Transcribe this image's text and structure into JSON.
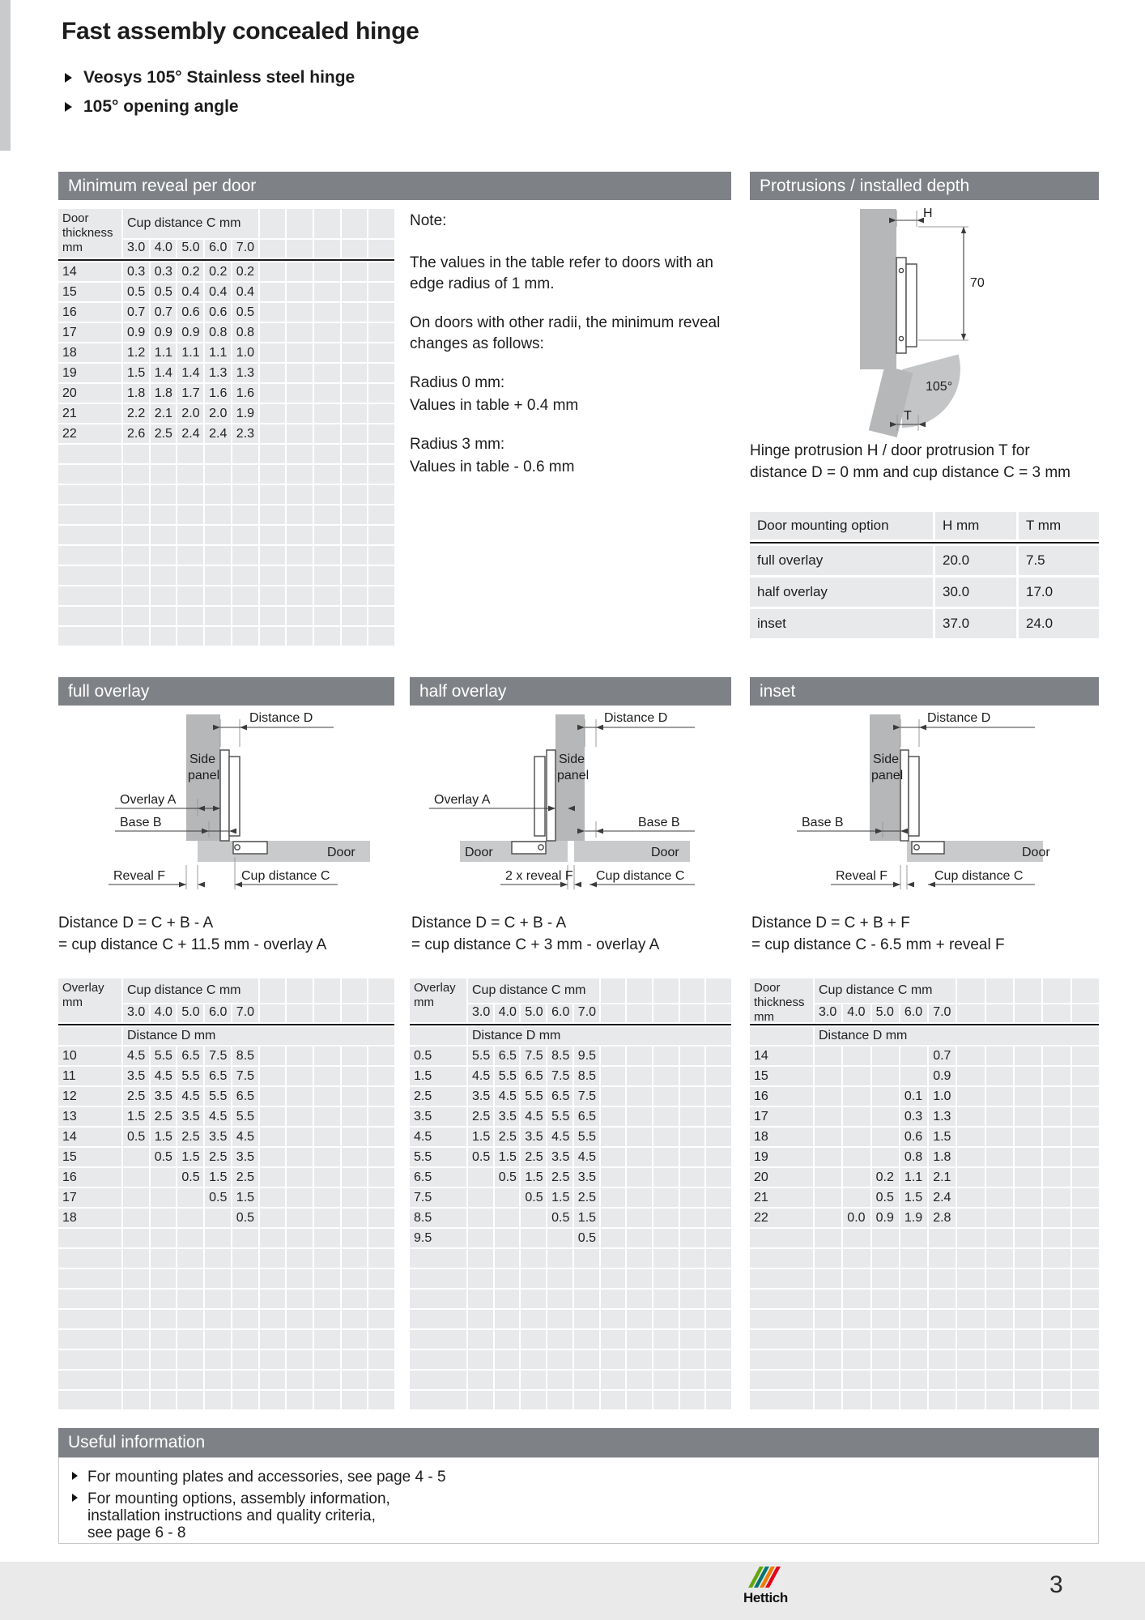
{
  "page": {
    "title": "Fast assembly concealed hinge",
    "subtitle_bullets": [
      "Veosys 105° Stainless steel hinge",
      "105° opening angle"
    ]
  },
  "sections": {
    "min_reveal": {
      "title": "Minimum reveal per door"
    },
    "protrusions": {
      "title": "Protrusions / installed depth"
    },
    "full_overlay": {
      "title": "full overlay"
    },
    "half_overlay": {
      "title": "half overlay"
    },
    "inset": {
      "title": "inset"
    },
    "useful": {
      "title": "Useful information"
    }
  },
  "note": {
    "heading": "Note:",
    "p1": "The values in the table refer to doors with an\nedge radius of 1 mm.",
    "p2": "On doors with other radii, the minimum reveal\nchanges as follows:",
    "r0_label": "Radius 0 mm:",
    "r0_value": "Values in table + 0.4 mm",
    "r3_label": "Radius 3 mm:",
    "r3_value": "Values in table - 0.6 mm"
  },
  "protrusions": {
    "caption": "Hinge protrusion H / door protrusion T for\ndistance D = 0 mm and cup distance C = 3 mm",
    "table": {
      "headers": [
        "Door mounting option",
        "H mm",
        "T mm"
      ],
      "rows": [
        {
          "option": "full overlay",
          "h": "20.0",
          "t": "7.5"
        },
        {
          "option": "half overlay",
          "h": "30.0",
          "t": "17.0"
        },
        {
          "option": "inset",
          "h": "37.0",
          "t": "24.0"
        }
      ]
    }
  },
  "diagrams": {
    "protrusion": {
      "labels": {
        "h": "H",
        "depth": "70",
        "angle": "105°",
        "t": "T"
      }
    },
    "full_overlay": {
      "labels": {
        "distance_d": "Distance D",
        "side_l1": "Side",
        "side_l2": "panel",
        "overlay_a": "Overlay A",
        "base_b": "Base B",
        "door": "Door",
        "reveal_f": "Reveal F",
        "cup_c": "Cup distance C"
      }
    },
    "half_overlay": {
      "labels": {
        "distance_d": "Distance D",
        "side_l1": "Side",
        "side_l2": "panel",
        "overlay_a": "Overlay A",
        "base_b": "Base B",
        "door_left": "Door",
        "door_right": "Door",
        "reveal": "2 x reveal F",
        "cup_c": "Cup distance C"
      }
    },
    "inset": {
      "labels": {
        "distance_d": "Distance D",
        "side_l1": "Side",
        "side_l2": "panel",
        "base_b": "Base B",
        "door": "Door",
        "reveal_f": "Reveal F",
        "cup_c": "Cup distance C"
      }
    }
  },
  "formulas": {
    "full_overlay": [
      "Distance D = C + B - A",
      "= cup distance C + 11.5 mm - overlay A"
    ],
    "half_overlay": [
      "Distance D = C + B - A",
      "= cup distance C + 3 mm - overlay A"
    ],
    "inset": [
      "Distance D = C + B + F",
      "= cup distance C - 6.5 mm + reveal F"
    ]
  },
  "tables": {
    "min_reveal": {
      "label_header": "Door\nthickness\nmm",
      "span_header": "Cup distance C mm",
      "col_headers": [
        "3.0",
        "4.0",
        "5.0",
        "6.0",
        "7.0"
      ],
      "extra_cols": 5,
      "rows": [
        {
          "label": "14",
          "values": [
            "0.3",
            "0.3",
            "0.2",
            "0.2",
            "0.2"
          ]
        },
        {
          "label": "15",
          "values": [
            "0.5",
            "0.5",
            "0.4",
            "0.4",
            "0.4"
          ]
        },
        {
          "label": "16",
          "values": [
            "0.7",
            "0.7",
            "0.6",
            "0.6",
            "0.5"
          ]
        },
        {
          "label": "17",
          "values": [
            "0.9",
            "0.9",
            "0.9",
            "0.8",
            "0.8"
          ]
        },
        {
          "label": "18",
          "values": [
            "1.2",
            "1.1",
            "1.1",
            "1.1",
            "1.0"
          ]
        },
        {
          "label": "19",
          "values": [
            "1.5",
            "1.4",
            "1.4",
            "1.3",
            "1.3"
          ]
        },
        {
          "label": "20",
          "values": [
            "1.8",
            "1.8",
            "1.7",
            "1.6",
            "1.6"
          ]
        },
        {
          "label": "21",
          "values": [
            "2.2",
            "2.1",
            "2.0",
            "2.0",
            "1.9"
          ]
        },
        {
          "label": "22",
          "values": [
            "2.6",
            "2.5",
            "2.4",
            "2.4",
            "2.3"
          ]
        }
      ],
      "empty_rows": 10
    },
    "full_overlay": {
      "label_header": "Overlay\nmm",
      "span_header": "Cup distance C mm",
      "col_headers": [
        "3.0",
        "4.0",
        "5.0",
        "6.0",
        "7.0"
      ],
      "extra_cols": 5,
      "sub_header": "Distance D mm",
      "rows": [
        {
          "label": "10",
          "values": [
            "4.5",
            "5.5",
            "6.5",
            "7.5",
            "8.5"
          ]
        },
        {
          "label": "11",
          "values": [
            "3.5",
            "4.5",
            "5.5",
            "6.5",
            "7.5"
          ]
        },
        {
          "label": "12",
          "values": [
            "2.5",
            "3.5",
            "4.5",
            "5.5",
            "6.5"
          ]
        },
        {
          "label": "13",
          "values": [
            "1.5",
            "2.5",
            "3.5",
            "4.5",
            "5.5"
          ]
        },
        {
          "label": "14",
          "values": [
            "0.5",
            "1.5",
            "2.5",
            "3.5",
            "4.5"
          ]
        },
        {
          "label": "15",
          "values": [
            "",
            "0.5",
            "1.5",
            "2.5",
            "3.5"
          ]
        },
        {
          "label": "16",
          "values": [
            "",
            "",
            "0.5",
            "1.5",
            "2.5"
          ]
        },
        {
          "label": "17",
          "values": [
            "",
            "",
            "",
            "0.5",
            "1.5"
          ]
        },
        {
          "label": "18",
          "values": [
            "",
            "",
            "",
            "",
            "0.5"
          ]
        }
      ],
      "empty_rows": 9
    },
    "half_overlay": {
      "label_header": "Overlay\nmm",
      "span_header": "Cup distance C mm",
      "col_headers": [
        "3.0",
        "4.0",
        "5.0",
        "6.0",
        "7.0"
      ],
      "extra_cols": 5,
      "sub_header": "Distance D mm",
      "rows": [
        {
          "label": "0.5",
          "values": [
            "5.5",
            "6.5",
            "7.5",
            "8.5",
            "9.5"
          ]
        },
        {
          "label": "1.5",
          "values": [
            "4.5",
            "5.5",
            "6.5",
            "7.5",
            "8.5"
          ]
        },
        {
          "label": "2.5",
          "values": [
            "3.5",
            "4.5",
            "5.5",
            "6.5",
            "7.5"
          ]
        },
        {
          "label": "3.5",
          "values": [
            "2.5",
            "3.5",
            "4.5",
            "5.5",
            "6.5"
          ]
        },
        {
          "label": "4.5",
          "values": [
            "1.5",
            "2.5",
            "3.5",
            "4.5",
            "5.5"
          ]
        },
        {
          "label": "5.5",
          "values": [
            "0.5",
            "1.5",
            "2.5",
            "3.5",
            "4.5"
          ]
        },
        {
          "label": "6.5",
          "values": [
            "",
            "0.5",
            "1.5",
            "2.5",
            "3.5"
          ]
        },
        {
          "label": "7.5",
          "values": [
            "",
            "",
            "0.5",
            "1.5",
            "2.5"
          ]
        },
        {
          "label": "8.5",
          "values": [
            "",
            "",
            "",
            "0.5",
            "1.5"
          ]
        },
        {
          "label": "9.5",
          "values": [
            "",
            "",
            "",
            "",
            "0.5"
          ]
        }
      ],
      "empty_rows": 8
    },
    "inset": {
      "label_header": "Door\nthickness\nmm",
      "span_header": "Cup distance C mm",
      "col_headers": [
        "3.0",
        "4.0",
        "5.0",
        "6.0",
        "7.0"
      ],
      "extra_cols": 5,
      "sub_header": "Distance D mm",
      "rows": [
        {
          "label": "14",
          "values": [
            "",
            "",
            "",
            "",
            "0.7"
          ]
        },
        {
          "label": "15",
          "values": [
            "",
            "",
            "",
            "",
            "0.9"
          ]
        },
        {
          "label": "16",
          "values": [
            "",
            "",
            "",
            "0.1",
            "1.0"
          ]
        },
        {
          "label": "17",
          "values": [
            "",
            "",
            "",
            "0.3",
            "1.3"
          ]
        },
        {
          "label": "18",
          "values": [
            "",
            "",
            "",
            "0.6",
            "1.5"
          ]
        },
        {
          "label": "19",
          "values": [
            "",
            "",
            "",
            "0.8",
            "1.8"
          ]
        },
        {
          "label": "20",
          "values": [
            "",
            "",
            "0.2",
            "1.1",
            "2.1"
          ]
        },
        {
          "label": "21",
          "values": [
            "",
            "",
            "0.5",
            "1.5",
            "2.4"
          ]
        },
        {
          "label": "22",
          "values": [
            "",
            "0.0",
            "0.9",
            "1.9",
            "2.8"
          ]
        }
      ],
      "empty_rows": 9
    }
  },
  "useful_info": {
    "items": [
      "For mounting plates and accessories, see page 4 - 5",
      "For mounting options, assembly information,\ninstallation instructions and quality criteria,\nsee page 6 - 8"
    ]
  },
  "footer": {
    "brand": "Hettich",
    "page_number": "3",
    "logo_colors": [
      "#64a70b",
      "#007672",
      "#ef7c00",
      "#e2001a"
    ]
  }
}
